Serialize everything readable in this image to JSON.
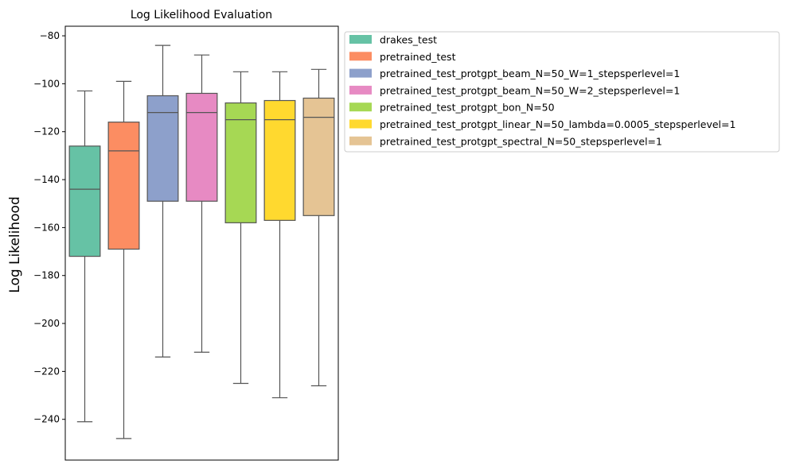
{
  "chart_data": {
    "type": "box",
    "title": "Log Likelihood Evaluation",
    "xlabel": "",
    "ylabel": "Log Likelihood",
    "ylim": [
      -257,
      -76
    ],
    "yticks": [
      -80,
      -100,
      -120,
      -140,
      -160,
      -180,
      -200,
      -220,
      -240
    ],
    "grid": false,
    "legend_position": "outside-right",
    "series": [
      {
        "name": "drakes_test",
        "color": "#66c2a5",
        "whisker_low": -241,
        "q1": -172,
        "median": -144,
        "q3": -126,
        "whisker_high": -103
      },
      {
        "name": "pretrained_test",
        "color": "#fc8d62",
        "whisker_low": -248,
        "q1": -169,
        "median": -128,
        "q3": -116,
        "whisker_high": -99
      },
      {
        "name": "pretrained_test_protgpt_beam_N=50_W=1_stepsperlevel=1",
        "color": "#8da0cb",
        "whisker_low": -214,
        "q1": -149,
        "median": -112,
        "q3": -105,
        "whisker_high": -84
      },
      {
        "name": "pretrained_test_protgpt_beam_N=50_W=2_stepsperlevel=1",
        "color": "#e78ac3",
        "whisker_low": -212,
        "q1": -149,
        "median": -112,
        "q3": -104,
        "whisker_high": -88
      },
      {
        "name": "pretrained_test_protgpt_bon_N=50",
        "color": "#a6d854",
        "whisker_low": -225,
        "q1": -158,
        "median": -115,
        "q3": -108,
        "whisker_high": -95
      },
      {
        "name": "pretrained_test_protgpt_linear_N=50_lambda=0.0005_stepsperlevel=1",
        "color": "#ffd92f",
        "whisker_low": -231,
        "q1": -157,
        "median": -115,
        "q3": -107,
        "whisker_high": -95
      },
      {
        "name": "pretrained_test_protgpt_spectral_N=50_stepsperlevel=1",
        "color": "#e5c494",
        "whisker_low": -226,
        "q1": -155,
        "median": -114,
        "q3": -106,
        "whisker_high": -94
      }
    ]
  }
}
